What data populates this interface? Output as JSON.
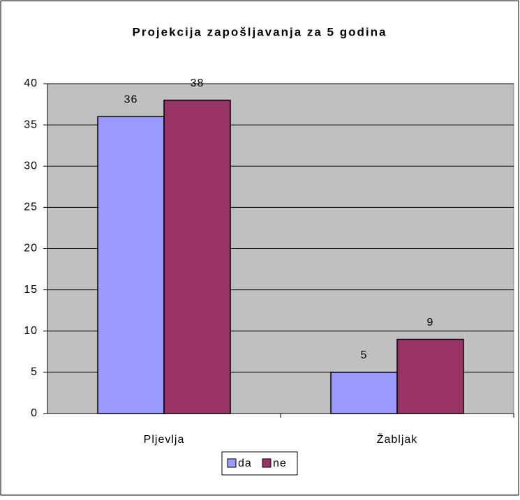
{
  "chart_data": {
    "type": "bar",
    "title": "Projekcija zapošljavanja za 5 godina",
    "categories": [
      "Pljevlja",
      "Žabljak"
    ],
    "series": [
      {
        "name": "da",
        "color": "#9999ff",
        "values": [
          36,
          5
        ]
      },
      {
        "name": "ne",
        "color": "#993366",
        "values": [
          38,
          9
        ]
      }
    ],
    "ylim": [
      0,
      40
    ],
    "yticks": [
      0,
      5,
      10,
      15,
      20,
      25,
      30,
      35,
      40
    ],
    "grid": true,
    "legend": "bottom",
    "plot_background": "#c0c0c0"
  }
}
